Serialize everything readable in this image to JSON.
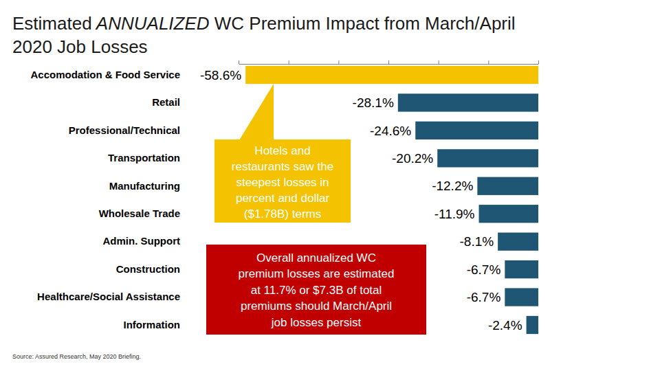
{
  "chart_data": {
    "type": "bar",
    "orientation": "horizontal",
    "title": "Estimated ANNUALIZED WC Premium Impact from March/April 2020 Job Losses",
    "categories": [
      "Accomodation & Food Service",
      "Retail",
      "Professional/Technical",
      "Transportation",
      "Manufacturing",
      "Wholesale Trade",
      "Admin. Support",
      "Construction",
      "Healthcare/Social Assistance",
      "Information"
    ],
    "values": [
      -58.6,
      -28.1,
      -24.6,
      -20.2,
      -12.2,
      -11.9,
      -8.1,
      -6.7,
      -6.7,
      -2.4
    ],
    "value_labels": [
      "-58.6%",
      "-28.1%",
      "-24.6%",
      "-20.2%",
      "-12.2%",
      "-11.9%",
      "-8.1%",
      "-6.7%",
      "-6.7%",
      "-2.4%"
    ],
    "colors": [
      "#f5c200",
      "#1f5673",
      "#1f5673",
      "#1f5673",
      "#1f5673",
      "#1f5673",
      "#1f5673",
      "#1f5673",
      "#1f5673",
      "#1f5673"
    ],
    "data_labels": true,
    "tick_labels": "y",
    "xlim": [
      -60,
      0
    ],
    "xticks": [
      -60,
      -50,
      -40,
      -30,
      -20,
      -10,
      0
    ],
    "annotations": [
      {
        "text": "Hotels and\nrestaurants saw the\nsteepest losses in\npercent and dollar\n($1.78B) terms"
      },
      {
        "text": "Overall annualized WC\npremium losses are estimated\nat 11.7% or $7.3B of total\npremiums should March/April\njob losses persist"
      }
    ],
    "source": "Source: Assured Research, May 2020 Briefing."
  }
}
